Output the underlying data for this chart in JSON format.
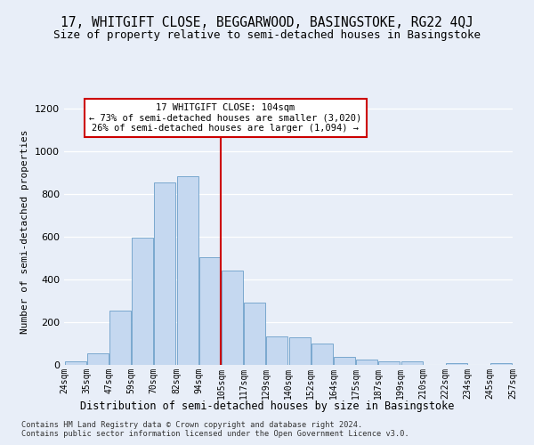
{
  "title": "17, WHITGIFT CLOSE, BEGGARWOOD, BASINGSTOKE, RG22 4QJ",
  "subtitle": "Size of property relative to semi-detached houses in Basingstoke",
  "xlabel": "Distribution of semi-detached houses by size in Basingstoke",
  "ylabel": "Number of semi-detached properties",
  "footnote1": "Contains HM Land Registry data © Crown copyright and database right 2024.",
  "footnote2": "Contains public sector information licensed under the Open Government Licence v3.0.",
  "bins": [
    "24sqm",
    "35sqm",
    "47sqm",
    "59sqm",
    "70sqm",
    "82sqm",
    "94sqm",
    "105sqm",
    "117sqm",
    "129sqm",
    "140sqm",
    "152sqm",
    "164sqm",
    "175sqm",
    "187sqm",
    "199sqm",
    "210sqm",
    "222sqm",
    "234sqm",
    "245sqm",
    "257sqm"
  ],
  "values": [
    15,
    55,
    255,
    595,
    855,
    885,
    505,
    440,
    290,
    135,
    130,
    102,
    38,
    25,
    18,
    15,
    0,
    8,
    0,
    8
  ],
  "bar_color": "#c5d8f0",
  "bar_edge_color": "#6b9fc8",
  "vline_color": "#cc0000",
  "annotation_title": "17 WHITGIFT CLOSE: 104sqm",
  "annotation_line1": "← 73% of semi-detached houses are smaller (3,020)",
  "annotation_line2": "26% of semi-detached houses are larger (1,094) →",
  "annotation_box_color": "#ffffff",
  "annotation_box_edge_color": "#cc0000",
  "ylim": [
    0,
    1250
  ],
  "yticks": [
    0,
    200,
    400,
    600,
    800,
    1000,
    1200
  ],
  "title_fontsize": 10.5,
  "subtitle_fontsize": 9,
  "background_color": "#e8eef8"
}
